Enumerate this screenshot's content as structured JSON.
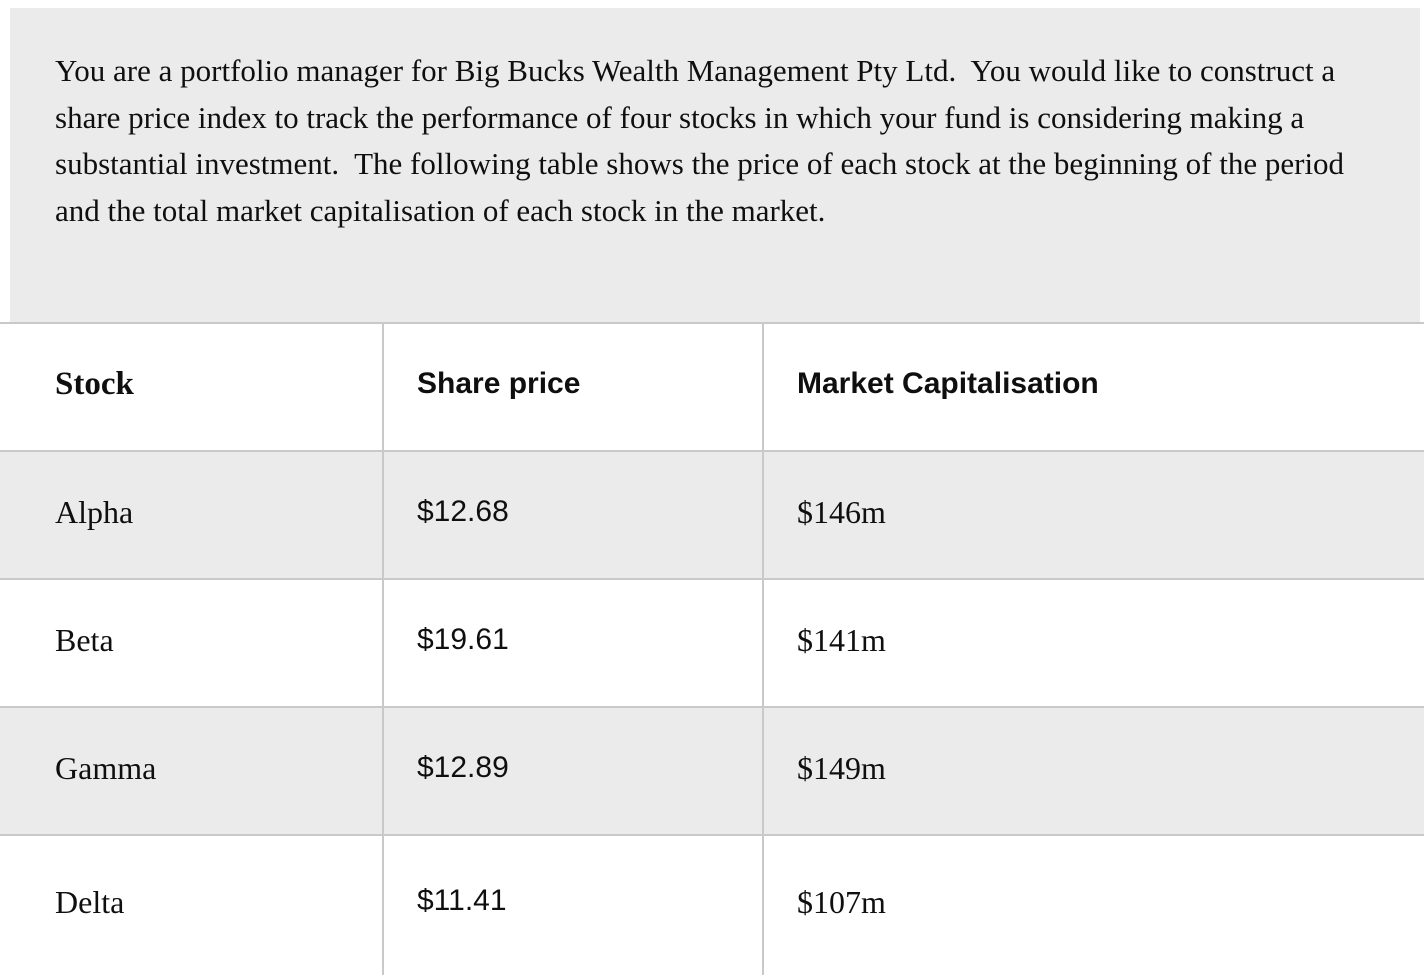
{
  "intro": {
    "text": "You are a portfolio manager for Big Bucks Wealth Management Pty Ltd.  You would like to construct a share price index to track the performance of four stocks in which your fund is considering making a substantial investment.  The following table shows the price of each stock at the beginning of the period and the total market capitalisation of each stock in the market."
  },
  "table": {
    "headers": {
      "stock": "Stock",
      "share_price": "Share price",
      "market_cap": "Market Capitalisation"
    },
    "rows": [
      {
        "stock": "Alpha",
        "share_price": "$12.68",
        "market_cap": "$146m"
      },
      {
        "stock": "Beta",
        "share_price": "$19.61",
        "market_cap": "$141m"
      },
      {
        "stock": "Gamma",
        "share_price": "$12.89",
        "market_cap": "$149m"
      },
      {
        "stock": "Delta",
        "share_price": "$11.41",
        "market_cap": "$107m"
      }
    ]
  },
  "colors": {
    "block_background": "#ebebeb",
    "row_alt_background": "#ebebeb",
    "border": "#c9c9c9",
    "text": "#0f0f0f"
  }
}
